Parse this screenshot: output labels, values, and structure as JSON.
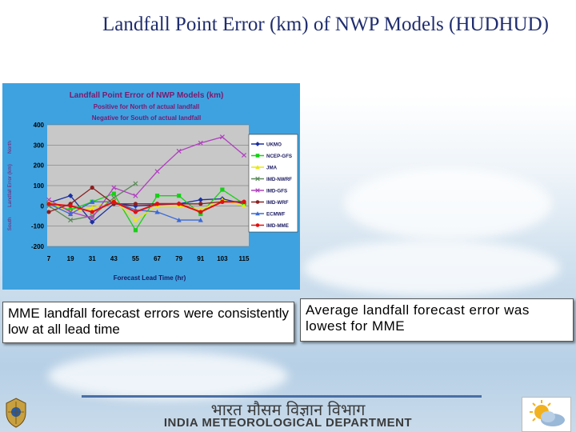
{
  "slide": {
    "title": "Landfall Point Error (km) of NWP Models (HUDHUD)",
    "box_left": "MME landfall forecast errors were consistently low at all lead time",
    "box_right": "Average landfall forecast error was lowest for MME",
    "footer_hindi": "भारत मौसम विज्ञान विभाग",
    "footer_english": "INDIA METEOROLOGICAL DEPARTMENT"
  },
  "chart_data": {
    "type": "line",
    "title": "Landfall Point Error of NWP Models (km)",
    "subtitle_1": "Positive for North of actual landfall",
    "subtitle_2": "Negative for South of actual landfall",
    "xlabel": "Forecast Lead Time (hr)",
    "ylabel_south": "South",
    "ylabel_mid": "Landfall Error (km)",
    "ylabel_north": "North",
    "categories": [
      "7",
      "19",
      "31",
      "43",
      "55",
      "67",
      "79",
      "91",
      "103",
      "115"
    ],
    "ylim": [
      -200,
      400
    ],
    "yticks": [
      "400",
      "300",
      "200",
      "100",
      "0",
      "-100",
      "-200"
    ],
    "legend_position": "right",
    "series": [
      {
        "name": "UKMO",
        "color": "#1a2fa0",
        "marker": "diamond",
        "values": [
          15,
          50,
          -80,
          10,
          0,
          5,
          10,
          30,
          35,
          10
        ]
      },
      {
        "name": "NCEP-GFS",
        "color": "#18d018",
        "marker": "square",
        "values": [
          10,
          -20,
          20,
          60,
          -120,
          50,
          50,
          -40,
          80,
          10
        ]
      },
      {
        "name": "JMA",
        "color": "#e8e810",
        "marker": "triangle",
        "values": [
          20,
          -30,
          -10,
          30,
          -70,
          0,
          0,
          -20,
          30,
          0
        ]
      },
      {
        "name": "IMD-NWRF",
        "color": "#5a8a5a",
        "marker": "x",
        "values": [
          0,
          -70,
          -50,
          40,
          110,
          null,
          null,
          null,
          null,
          null
        ]
      },
      {
        "name": "IMD-GFS",
        "color": "#b040c0",
        "marker": "x",
        "values": [
          30,
          -30,
          -60,
          90,
          50,
          170,
          270,
          310,
          340,
          250
        ]
      },
      {
        "name": "IMD-WRF",
        "color": "#8b2020",
        "marker": "circle",
        "values": [
          -30,
          10,
          90,
          10,
          10,
          10,
          10,
          10,
          20,
          20
        ]
      },
      {
        "name": "ECMWF",
        "color": "#3a6ad8",
        "marker": "triangle",
        "values": [
          10,
          -40,
          20,
          20,
          -20,
          -30,
          -70,
          -70,
          null,
          null
        ]
      },
      {
        "name": "IMD-MME",
        "color": "#e01010",
        "marker": "circle",
        "values": [
          10,
          0,
          -30,
          20,
          -30,
          10,
          10,
          -30,
          20,
          20
        ]
      }
    ]
  }
}
